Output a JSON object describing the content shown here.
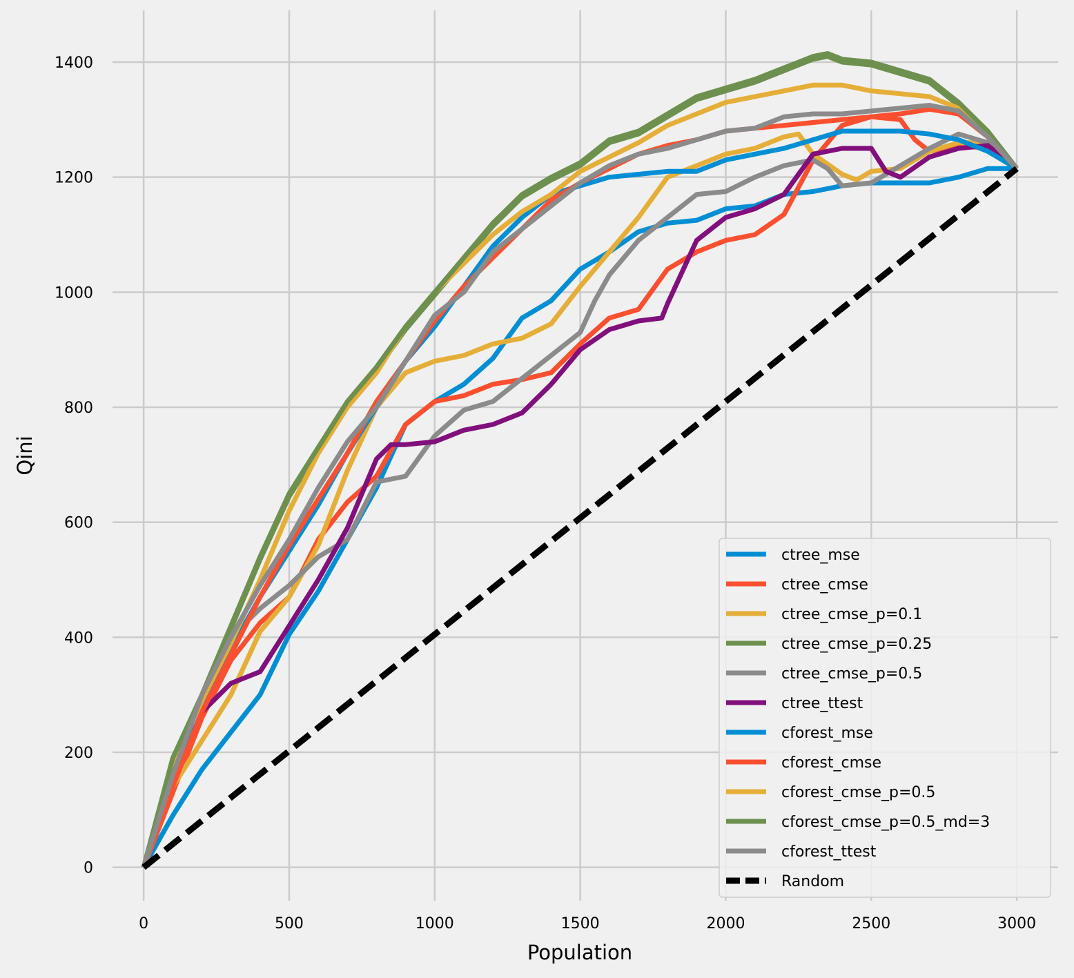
{
  "chart_data": {
    "type": "line",
    "title": "",
    "xlabel": "Population",
    "ylabel": "Qini",
    "xlim": [
      -107,
      3142
    ],
    "ylim": [
      -58,
      1490
    ],
    "xticks": [
      0,
      500,
      1000,
      1500,
      2000,
      2500,
      3000
    ],
    "yticks": [
      0,
      200,
      400,
      600,
      800,
      1000,
      1200,
      1400
    ],
    "grid": true,
    "legend_position": "lower-right",
    "colors": {
      "background": "#f0f0f0",
      "grid": "#cbcbcb"
    },
    "series": [
      {
        "name": "ctree_mse",
        "color": "#008fd5",
        "dashed": false,
        "x": [
          0,
          100,
          200,
          300,
          400,
          500,
          600,
          700,
          800,
          900,
          1000,
          1100,
          1200,
          1300,
          1400,
          1500,
          1600,
          1700,
          1800,
          1900,
          2000,
          2100,
          2200,
          2300,
          2400,
          2500,
          2600,
          2700,
          2800,
          2900,
          3000
        ],
        "y": [
          0,
          90,
          170,
          235,
          300,
          405,
          480,
          570,
          660,
          770,
          810,
          840,
          885,
          955,
          985,
          1040,
          1070,
          1105,
          1120,
          1125,
          1145,
          1150,
          1170,
          1175,
          1185,
          1190,
          1190,
          1190,
          1200,
          1215,
          1215
        ]
      },
      {
        "name": "ctree_cmse",
        "color": "#fc4f30",
        "dashed": false,
        "x": [
          0,
          100,
          200,
          300,
          400,
          500,
          600,
          700,
          800,
          900,
          1000,
          1100,
          1200,
          1300,
          1400,
          1500,
          1600,
          1700,
          1800,
          1900,
          2000,
          2100,
          2200,
          2300,
          2400,
          2500,
          2600,
          2650,
          2700,
          2800,
          2900,
          3000
        ],
        "y": [
          0,
          130,
          260,
          360,
          425,
          470,
          570,
          635,
          680,
          770,
          810,
          820,
          840,
          848,
          860,
          910,
          955,
          970,
          1040,
          1070,
          1090,
          1100,
          1135,
          1230,
          1290,
          1305,
          1300,
          1265,
          1245,
          1255,
          1250,
          1215
        ]
      },
      {
        "name": "ctree_cmse_p=0.1",
        "color": "#e5ae38",
        "dashed": false,
        "x": [
          0,
          100,
          200,
          300,
          400,
          500,
          600,
          700,
          800,
          900,
          1000,
          1100,
          1200,
          1300,
          1400,
          1500,
          1600,
          1700,
          1800,
          1900,
          2000,
          2100,
          2200,
          2250,
          2300,
          2400,
          2450,
          2500,
          2600,
          2700,
          2800,
          2900,
          3000
        ],
        "y": [
          0,
          140,
          220,
          300,
          410,
          470,
          560,
          690,
          800,
          860,
          880,
          890,
          910,
          920,
          945,
          1010,
          1070,
          1130,
          1200,
          1220,
          1240,
          1250,
          1270,
          1275,
          1240,
          1205,
          1195,
          1210,
          1215,
          1245,
          1260,
          1260,
          1215
        ]
      },
      {
        "name": "ctree_cmse_p=0.25",
        "color": "#6d904f",
        "dashed": false,
        "x": [
          0,
          100,
          200,
          300,
          400,
          500,
          600,
          700,
          800,
          900,
          1000,
          1100,
          1200,
          1300,
          1400,
          1500,
          1600,
          1700,
          1800,
          1900,
          2000,
          2100,
          2200,
          2300,
          2350,
          2400,
          2500,
          2600,
          2700,
          2800,
          2900,
          3000
        ],
        "y": [
          0,
          185,
          295,
          415,
          535,
          645,
          725,
          805,
          865,
          935,
          995,
          1055,
          1115,
          1165,
          1195,
          1220,
          1260,
          1275,
          1305,
          1335,
          1350,
          1365,
          1385,
          1405,
          1410,
          1400,
          1395,
          1380,
          1365,
          1325,
          1278,
          1215
        ]
      },
      {
        "name": "ctree_cmse_p=0.5",
        "color": "#8b8b8b",
        "dashed": false,
        "x": [
          0,
          100,
          200,
          300,
          400,
          500,
          600,
          700,
          800,
          900,
          1000,
          1100,
          1200,
          1300,
          1400,
          1500,
          1550,
          1600,
          1700,
          1800,
          1900,
          2000,
          2100,
          2200,
          2300,
          2350,
          2400,
          2500,
          2600,
          2700,
          2800,
          2900,
          3000
        ],
        "y": [
          0,
          160,
          300,
          400,
          450,
          490,
          540,
          570,
          670,
          680,
          750,
          795,
          810,
          850,
          890,
          930,
          985,
          1030,
          1090,
          1130,
          1170,
          1175,
          1200,
          1220,
          1230,
          1215,
          1185,
          1190,
          1220,
          1250,
          1275,
          1260,
          1215
        ]
      },
      {
        "name": "ctree_ttest",
        "color": "#810f7c",
        "dashed": false,
        "x": [
          0,
          100,
          200,
          300,
          400,
          500,
          600,
          700,
          800,
          850,
          900,
          1000,
          1100,
          1200,
          1300,
          1400,
          1500,
          1600,
          1700,
          1780,
          1800,
          1900,
          2000,
          2100,
          2200,
          2300,
          2400,
          2500,
          2550,
          2600,
          2700,
          2800,
          2900,
          3000
        ],
        "y": [
          0,
          150,
          270,
          320,
          340,
          420,
          500,
          590,
          710,
          735,
          735,
          740,
          760,
          770,
          790,
          840,
          900,
          935,
          950,
          955,
          980,
          1090,
          1130,
          1145,
          1170,
          1240,
          1250,
          1250,
          1210,
          1200,
          1235,
          1250,
          1255,
          1215
        ]
      },
      {
        "name": "cforest_mse",
        "color": "#008fd5",
        "dashed": false,
        "x": [
          0,
          100,
          200,
          300,
          400,
          500,
          600,
          700,
          800,
          900,
          1000,
          1100,
          1200,
          1300,
          1400,
          1500,
          1600,
          1700,
          1800,
          1900,
          2000,
          2100,
          2200,
          2300,
          2400,
          2500,
          2600,
          2700,
          2800,
          2900,
          3000
        ],
        "y": [
          0,
          150,
          270,
          380,
          470,
          550,
          630,
          720,
          800,
          880,
          940,
          1010,
          1080,
          1130,
          1170,
          1185,
          1200,
          1205,
          1210,
          1210,
          1230,
          1240,
          1250,
          1265,
          1280,
          1280,
          1280,
          1275,
          1265,
          1245,
          1215
        ]
      },
      {
        "name": "cforest_cmse",
        "color": "#fc4f30",
        "dashed": false,
        "x": [
          0,
          100,
          200,
          300,
          400,
          500,
          600,
          700,
          800,
          900,
          1000,
          1100,
          1200,
          1300,
          1400,
          1500,
          1600,
          1700,
          1800,
          1900,
          2000,
          2100,
          2200,
          2300,
          2400,
          2500,
          2600,
          2700,
          2800,
          2900,
          3000
        ],
        "y": [
          0,
          140,
          270,
          370,
          470,
          560,
          640,
          720,
          810,
          880,
          950,
          1010,
          1060,
          1110,
          1160,
          1190,
          1215,
          1240,
          1255,
          1265,
          1280,
          1285,
          1290,
          1295,
          1300,
          1305,
          1310,
          1318,
          1310,
          1270,
          1215
        ]
      },
      {
        "name": "cforest_cmse_p=0.5",
        "color": "#e5ae38",
        "dashed": false,
        "x": [
          0,
          100,
          200,
          300,
          400,
          500,
          600,
          700,
          800,
          900,
          1000,
          1100,
          1200,
          1300,
          1400,
          1500,
          1600,
          1700,
          1800,
          1900,
          2000,
          2100,
          2200,
          2300,
          2400,
          2500,
          2600,
          2700,
          2800,
          2900,
          3000
        ],
        "y": [
          0,
          180,
          290,
          390,
          500,
          620,
          720,
          800,
          860,
          940,
          1000,
          1050,
          1100,
          1140,
          1170,
          1210,
          1235,
          1260,
          1290,
          1310,
          1330,
          1340,
          1350,
          1360,
          1360,
          1350,
          1345,
          1340,
          1320,
          1270,
          1215
        ]
      },
      {
        "name": "cforest_cmse_p=0.5_md=3",
        "color": "#6d904f",
        "dashed": false,
        "x": [
          0,
          100,
          200,
          300,
          400,
          500,
          600,
          700,
          800,
          900,
          1000,
          1100,
          1200,
          1300,
          1400,
          1500,
          1600,
          1700,
          1800,
          1900,
          2000,
          2100,
          2200,
          2300,
          2350,
          2400,
          2500,
          2600,
          2700,
          2800,
          2900,
          3000
        ],
        "y": [
          0,
          190,
          300,
          420,
          540,
          650,
          730,
          810,
          870,
          940,
          1000,
          1060,
          1120,
          1170,
          1200,
          1225,
          1265,
          1280,
          1310,
          1340,
          1355,
          1370,
          1390,
          1410,
          1415,
          1405,
          1400,
          1385,
          1370,
          1330,
          1280,
          1215
        ]
      },
      {
        "name": "cforest_ttest",
        "color": "#8b8b8b",
        "dashed": false,
        "x": [
          0,
          100,
          200,
          300,
          400,
          500,
          600,
          700,
          800,
          900,
          1000,
          1100,
          1200,
          1300,
          1400,
          1500,
          1600,
          1700,
          1800,
          1900,
          2000,
          2100,
          2200,
          2300,
          2400,
          2500,
          2600,
          2700,
          2800,
          2900,
          3000
        ],
        "y": [
          0,
          160,
          300,
          400,
          490,
          570,
          660,
          740,
          800,
          880,
          960,
          1000,
          1070,
          1110,
          1150,
          1190,
          1220,
          1240,
          1250,
          1265,
          1280,
          1285,
          1305,
          1310,
          1310,
          1315,
          1320,
          1325,
          1315,
          1270,
          1215
        ]
      },
      {
        "name": "Random",
        "color": "#000000",
        "dashed": true,
        "x": [
          0,
          3000
        ],
        "y": [
          0,
          1215
        ]
      }
    ]
  }
}
